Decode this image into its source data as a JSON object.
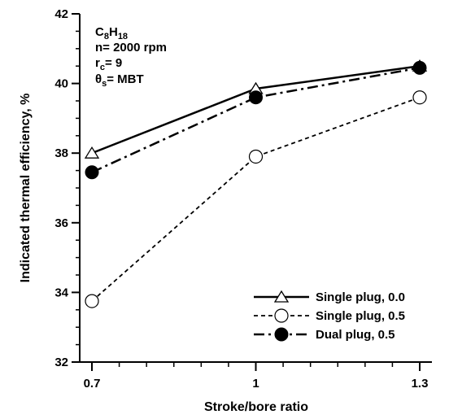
{
  "chart_data": {
    "type": "line",
    "xlabel": "Stroke/bore ratio",
    "ylabel": "Indicated thermal efficiency, %",
    "x_ticks": [
      "0.7",
      "1",
      "1.3"
    ],
    "y_ticks": [
      "32",
      "34",
      "36",
      "38",
      "40",
      "42"
    ],
    "xlim": [
      0.7,
      1.3
    ],
    "ylim": [
      32,
      42
    ],
    "grid": false,
    "legend_position": "bottom-right",
    "annotations": {
      "fuel": {
        "base": "C",
        "sub1": "8",
        "mid": "H",
        "sub2": "18"
      },
      "speed": "n= 2000 rpm",
      "ratio": {
        "base": "r",
        "sub": "c",
        "rest": "= 9"
      },
      "timing": {
        "base": "θ",
        "sub": "s",
        "rest": "= MBT"
      }
    },
    "series": [
      {
        "name": "Single plug, 0.0",
        "marker": "open-triangle",
        "line": "solid",
        "x": [
          0.7,
          1.0,
          1.3
        ],
        "y": [
          38.0,
          39.85,
          40.5
        ]
      },
      {
        "name": "Single plug, 0.5",
        "marker": "open-circle",
        "line": "dashed",
        "x": [
          0.7,
          1.0,
          1.3
        ],
        "y": [
          33.75,
          37.9,
          39.6
        ]
      },
      {
        "name": "Dual plug, 0.5",
        "marker": "filled-circle",
        "line": "dash-dot",
        "x": [
          0.7,
          1.0,
          1.3
        ],
        "y": [
          37.45,
          39.6,
          40.45
        ]
      }
    ]
  }
}
